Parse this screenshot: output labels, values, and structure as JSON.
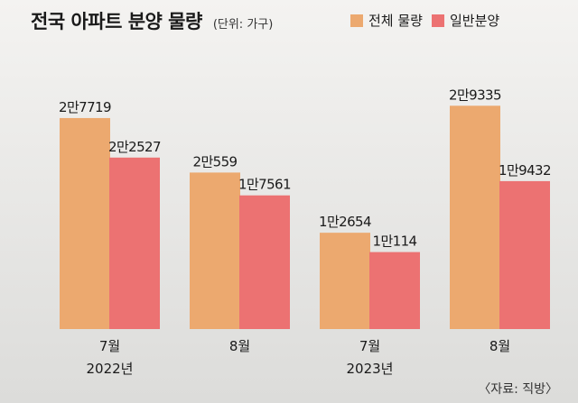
{
  "chart_data": {
    "type": "bar",
    "title": "전국 아파트 분양 물량",
    "unit_note": "(단위: 가구)",
    "categories": [
      "7월",
      "8월",
      "7월",
      "8월"
    ],
    "category_years": [
      "2022년",
      "",
      "2023년",
      ""
    ],
    "series": [
      {
        "name": "전체 물량",
        "color": "#eca96f",
        "values": [
          27719,
          20559,
          12654,
          29335
        ],
        "labels": [
          "2만7719",
          "2만559",
          "1만2654",
          "2만9335"
        ]
      },
      {
        "name": "일반분양",
        "color": "#ec7272",
        "values": [
          22527,
          17561,
          10114,
          19432
        ],
        "labels": [
          "2만2527",
          "1만7561",
          "1만114",
          "1만9432"
        ]
      }
    ],
    "ylim": [
      0,
      32000
    ],
    "grid": false,
    "legend_position": "top-right",
    "source": "〈자료: 직방〉"
  }
}
